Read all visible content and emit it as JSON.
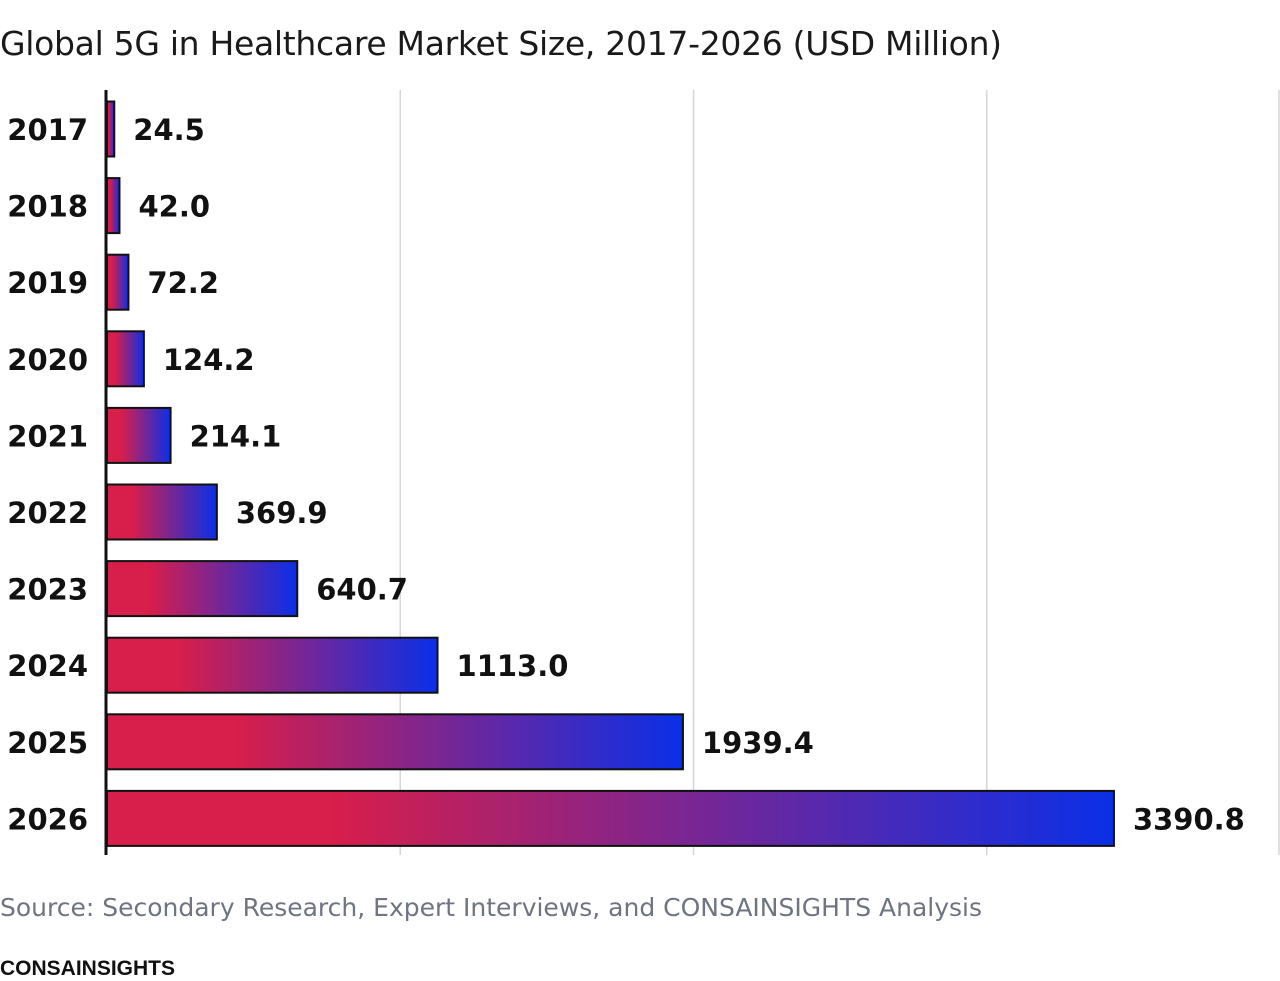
{
  "chart_data": {
    "type": "bar",
    "orientation": "horizontal",
    "title": "Global 5G in Healthcare Market Size, 2017-2026 (USD Million)",
    "categories": [
      "2017",
      "2018",
      "2019",
      "2020",
      "2021",
      "2022",
      "2023",
      "2024",
      "2025",
      "2026"
    ],
    "values": [
      24.5,
      42.0,
      72.2,
      124.2,
      214.1,
      369.9,
      640.7,
      1113.0,
      1939.4,
      3390.8
    ],
    "value_labels": [
      "24.5",
      "42.0",
      "72.2",
      "124.2",
      "214.1",
      "369.9",
      "640.7",
      "1113.0",
      "1939.4",
      "3390.8"
    ],
    "xlim": [
      0,
      3950
    ],
    "grid": true,
    "legend": "none",
    "colors": {
      "gradient_start": "#d81e4a",
      "gradient_end": "#0a2fe8",
      "grid": "#d5d5da",
      "axis": "#111111"
    }
  },
  "source_note": "Source: Secondary Research, Expert Interviews, and CONSAINSIGHTS Analysis",
  "brand": "CONSAINSIGHTS"
}
